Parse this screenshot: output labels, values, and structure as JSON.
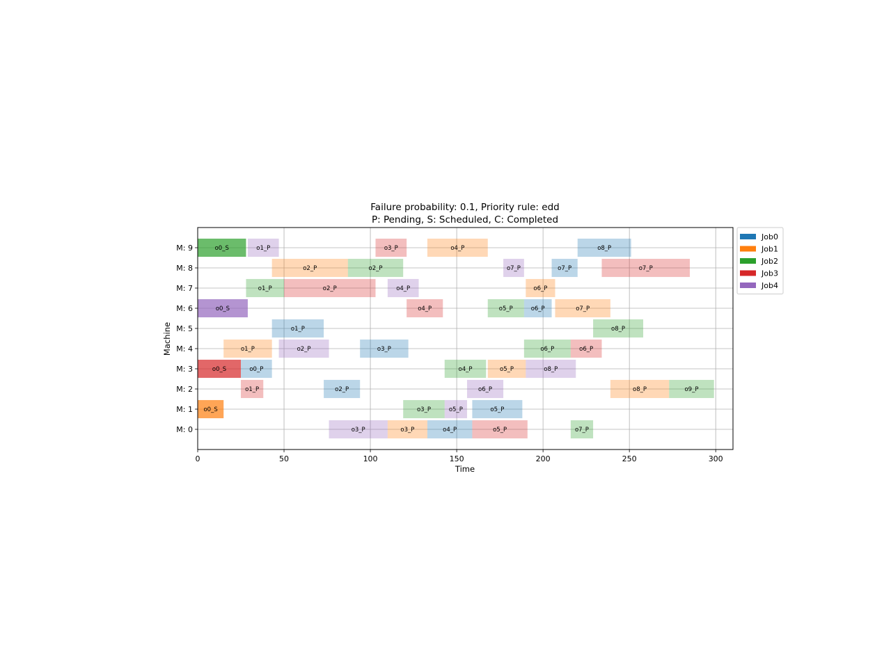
{
  "chart_data": {
    "type": "gantt",
    "title_line1": "Failure probability: 0.1, Priority rule: edd",
    "title_line2": "P: Pending, S: Scheduled, C: Completed",
    "xlabel": "Time",
    "ylabel": "Machine",
    "xlim": [
      0,
      310
    ],
    "xticks": [
      0,
      50,
      100,
      150,
      200,
      250,
      300
    ],
    "machines": [
      "M: 0",
      "M: 1",
      "M: 2",
      "M: 3",
      "M: 4",
      "M: 5",
      "M: 6",
      "M: 7",
      "M: 8",
      "M: 9"
    ],
    "legend": {
      "position": "outside-right-top",
      "entries": [
        {
          "label": "Job0",
          "color": "#1f77b4"
        },
        {
          "label": "Job1",
          "color": "#ff7f0e"
        },
        {
          "label": "Job2",
          "color": "#2ca02c"
        },
        {
          "label": "Job3",
          "color": "#d62728"
        },
        {
          "label": "Job4",
          "color": "#9467bd"
        }
      ]
    },
    "tasks": [
      {
        "machine": 9,
        "job": 2,
        "start": 0,
        "end": 28,
        "label": "o0_S",
        "status": "S"
      },
      {
        "machine": 9,
        "job": 4,
        "start": 29,
        "end": 47,
        "label": "o1_P",
        "status": "P"
      },
      {
        "machine": 9,
        "job": 3,
        "start": 103,
        "end": 121,
        "label": "o3_P",
        "status": "P"
      },
      {
        "machine": 9,
        "job": 1,
        "start": 133,
        "end": 168,
        "label": "o4_P",
        "status": "P"
      },
      {
        "machine": 9,
        "job": 0,
        "start": 220,
        "end": 251,
        "label": "o8_P",
        "status": "P"
      },
      {
        "machine": 8,
        "job": 1,
        "start": 43,
        "end": 87,
        "label": "o2_P",
        "status": "P"
      },
      {
        "machine": 8,
        "job": 2,
        "start": 87,
        "end": 119,
        "label": "o2_P",
        "status": "P"
      },
      {
        "machine": 8,
        "job": 4,
        "start": 177,
        "end": 189,
        "label": "o7_P",
        "status": "P"
      },
      {
        "machine": 8,
        "job": 0,
        "start": 205,
        "end": 220,
        "label": "o7_P",
        "status": "P"
      },
      {
        "machine": 8,
        "job": 3,
        "start": 234,
        "end": 285,
        "label": "o7_P",
        "status": "P"
      },
      {
        "machine": 7,
        "job": 2,
        "start": 28,
        "end": 50,
        "label": "o1_P",
        "status": "P"
      },
      {
        "machine": 7,
        "job": 3,
        "start": 50,
        "end": 103,
        "label": "o2_P",
        "status": "P"
      },
      {
        "machine": 7,
        "job": 4,
        "start": 110,
        "end": 128,
        "label": "o4_P",
        "status": "P"
      },
      {
        "machine": 7,
        "job": 1,
        "start": 190,
        "end": 207,
        "label": "o6_P",
        "status": "P"
      },
      {
        "machine": 6,
        "job": 4,
        "start": 0,
        "end": 29,
        "label": "o0_S",
        "status": "S"
      },
      {
        "machine": 6,
        "job": 3,
        "start": 121,
        "end": 142,
        "label": "o4_P",
        "status": "P"
      },
      {
        "machine": 6,
        "job": 2,
        "start": 168,
        "end": 189,
        "label": "o5_P",
        "status": "P"
      },
      {
        "machine": 6,
        "job": 0,
        "start": 189,
        "end": 205,
        "label": "o6_P",
        "status": "P"
      },
      {
        "machine": 6,
        "job": 1,
        "start": 207,
        "end": 239,
        "label": "o7_P",
        "status": "P"
      },
      {
        "machine": 5,
        "job": 0,
        "start": 43,
        "end": 73,
        "label": "o1_P",
        "status": "P"
      },
      {
        "machine": 5,
        "job": 2,
        "start": 229,
        "end": 258,
        "label": "o8_P",
        "status": "P"
      },
      {
        "machine": 4,
        "job": 1,
        "start": 15,
        "end": 43,
        "label": "o1_P",
        "status": "P"
      },
      {
        "machine": 4,
        "job": 4,
        "start": 47,
        "end": 76,
        "label": "o2_P",
        "status": "P"
      },
      {
        "machine": 4,
        "job": 0,
        "start": 94,
        "end": 122,
        "label": "o3_P",
        "status": "P"
      },
      {
        "machine": 4,
        "job": 2,
        "start": 189,
        "end": 216,
        "label": "o6_P",
        "status": "P"
      },
      {
        "machine": 4,
        "job": 3,
        "start": 216,
        "end": 234,
        "label": "o6_P",
        "status": "P"
      },
      {
        "machine": 3,
        "job": 3,
        "start": 0,
        "end": 25,
        "label": "o0_S",
        "status": "S"
      },
      {
        "machine": 3,
        "job": 0,
        "start": 25,
        "end": 43,
        "label": "o0_P",
        "status": "P"
      },
      {
        "machine": 3,
        "job": 2,
        "start": 143,
        "end": 167,
        "label": "o4_P",
        "status": "P"
      },
      {
        "machine": 3,
        "job": 1,
        "start": 168,
        "end": 190,
        "label": "o5_P",
        "status": "P"
      },
      {
        "machine": 3,
        "job": 4,
        "start": 190,
        "end": 219,
        "label": "o8_P",
        "status": "P"
      },
      {
        "machine": 2,
        "job": 3,
        "start": 25,
        "end": 38,
        "label": "o1_P",
        "status": "P"
      },
      {
        "machine": 2,
        "job": 0,
        "start": 73,
        "end": 94,
        "label": "o2_P",
        "status": "P"
      },
      {
        "machine": 2,
        "job": 4,
        "start": 156,
        "end": 177,
        "label": "o6_P",
        "status": "P"
      },
      {
        "machine": 2,
        "job": 1,
        "start": 239,
        "end": 273,
        "label": "o8_P",
        "status": "P"
      },
      {
        "machine": 2,
        "job": 2,
        "start": 273,
        "end": 299,
        "label": "o9_P",
        "status": "P"
      },
      {
        "machine": 1,
        "job": 1,
        "start": 0,
        "end": 15,
        "label": "o0_S",
        "status": "S"
      },
      {
        "machine": 1,
        "job": 2,
        "start": 119,
        "end": 143,
        "label": "o3_P",
        "status": "P"
      },
      {
        "machine": 1,
        "job": 4,
        "start": 143,
        "end": 156,
        "label": "o5_P",
        "status": "P"
      },
      {
        "machine": 1,
        "job": 0,
        "start": 159,
        "end": 188,
        "label": "o5_P",
        "status": "P"
      },
      {
        "machine": 0,
        "job": 4,
        "start": 76,
        "end": 110,
        "label": "o3_P",
        "status": "P"
      },
      {
        "machine": 0,
        "job": 1,
        "start": 110,
        "end": 133,
        "label": "o3_P",
        "status": "P"
      },
      {
        "machine": 0,
        "job": 0,
        "start": 133,
        "end": 159,
        "label": "o4_P",
        "status": "P"
      },
      {
        "machine": 0,
        "job": 3,
        "start": 159,
        "end": 191,
        "label": "o5_P",
        "status": "P"
      },
      {
        "machine": 0,
        "job": 2,
        "start": 216,
        "end": 229,
        "label": "o7_P",
        "status": "P"
      }
    ]
  }
}
